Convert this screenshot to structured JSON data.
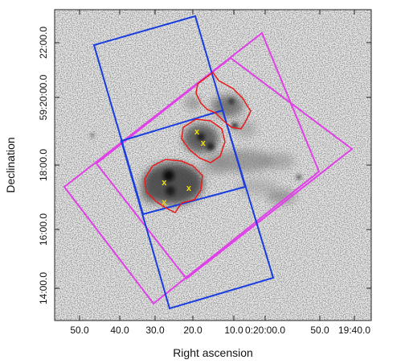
{
  "chart_data": {
    "type": "scatter",
    "xlabel": "Right ascension",
    "ylabel": "Declination",
    "x_ticks": [
      "50.0",
      "40.0",
      "30.0",
      "20.0",
      "10.0",
      "0:20:00.0",
      "50.0",
      "19:40.0"
    ],
    "y_ticks": [
      "14:00.0",
      "16:00.0",
      "18:00.0",
      "59:20:00.0",
      "22:00.0"
    ],
    "x_axis_direction": "RA increases to the left",
    "background": "grayscale sky image with dark nebular emission",
    "series": [
      {
        "name": "",
        "role": "X-ray source positions",
        "marker": "x",
        "color": "#f2e000",
        "points": [
          {
            "ra_sec": 27.0,
            "dec": "59:17:30"
          },
          {
            "ra_sec": 27.0,
            "dec": "59:16:55"
          },
          {
            "ra_sec": 21.0,
            "dec": "59:17:20"
          },
          {
            "ra_sec": 19.0,
            "dec": "59:19:00"
          },
          {
            "ra_sec": 17.5,
            "dec": "59:18:40"
          }
        ]
      }
    ],
    "overlays": [
      {
        "role": "field-of-view",
        "shape": "rotated rectangle",
        "color": "#1a3de0",
        "count": 2
      },
      {
        "role": "field-of-view",
        "shape": "rotated rectangle",
        "color": "#e040e8",
        "count": 2
      },
      {
        "role": "region contour",
        "shape": "irregular outline",
        "color": "#e81b1b",
        "count": 3
      }
    ],
    "grid": false,
    "legend": "none"
  }
}
